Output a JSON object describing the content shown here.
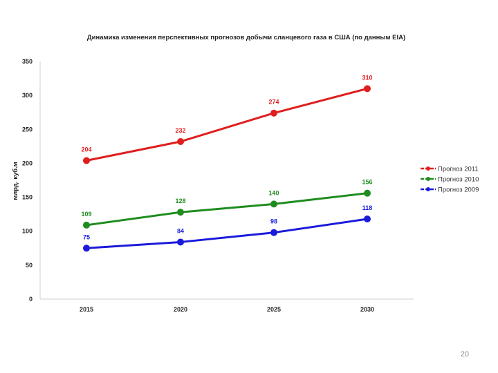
{
  "page": {
    "number": "20"
  },
  "chart_data": {
    "type": "line",
    "title": "Динамика изменения перспективных прогнозов добычи сланцевого газа в США (по данным EIA)",
    "xlabel": "",
    "ylabel": "млрд. куб.м",
    "categories": [
      "2015",
      "2020",
      "2025",
      "2030"
    ],
    "ylim": [
      0,
      350
    ],
    "yticks": [
      "0",
      "50",
      "100",
      "150",
      "200",
      "250",
      "300",
      "350"
    ],
    "grid": false,
    "legend_position": "right",
    "series": [
      {
        "name": "Прогноз 2011",
        "values": [
          204,
          232,
          274,
          310
        ],
        "labels": [
          "204",
          "232",
          "274",
          "310"
        ],
        "color": "#e01e1e"
      },
      {
        "name": "Прогноз 2010",
        "values": [
          109,
          128,
          140,
          156
        ],
        "labels": [
          "109",
          "128",
          "140",
          "156"
        ],
        "color": "#1e8c1e"
      },
      {
        "name": "Прогноз 2009",
        "values": [
          75,
          84,
          98,
          118
        ],
        "labels": [
          "75",
          "84",
          "98",
          "118"
        ],
        "color": "#1a1adc"
      }
    ]
  }
}
